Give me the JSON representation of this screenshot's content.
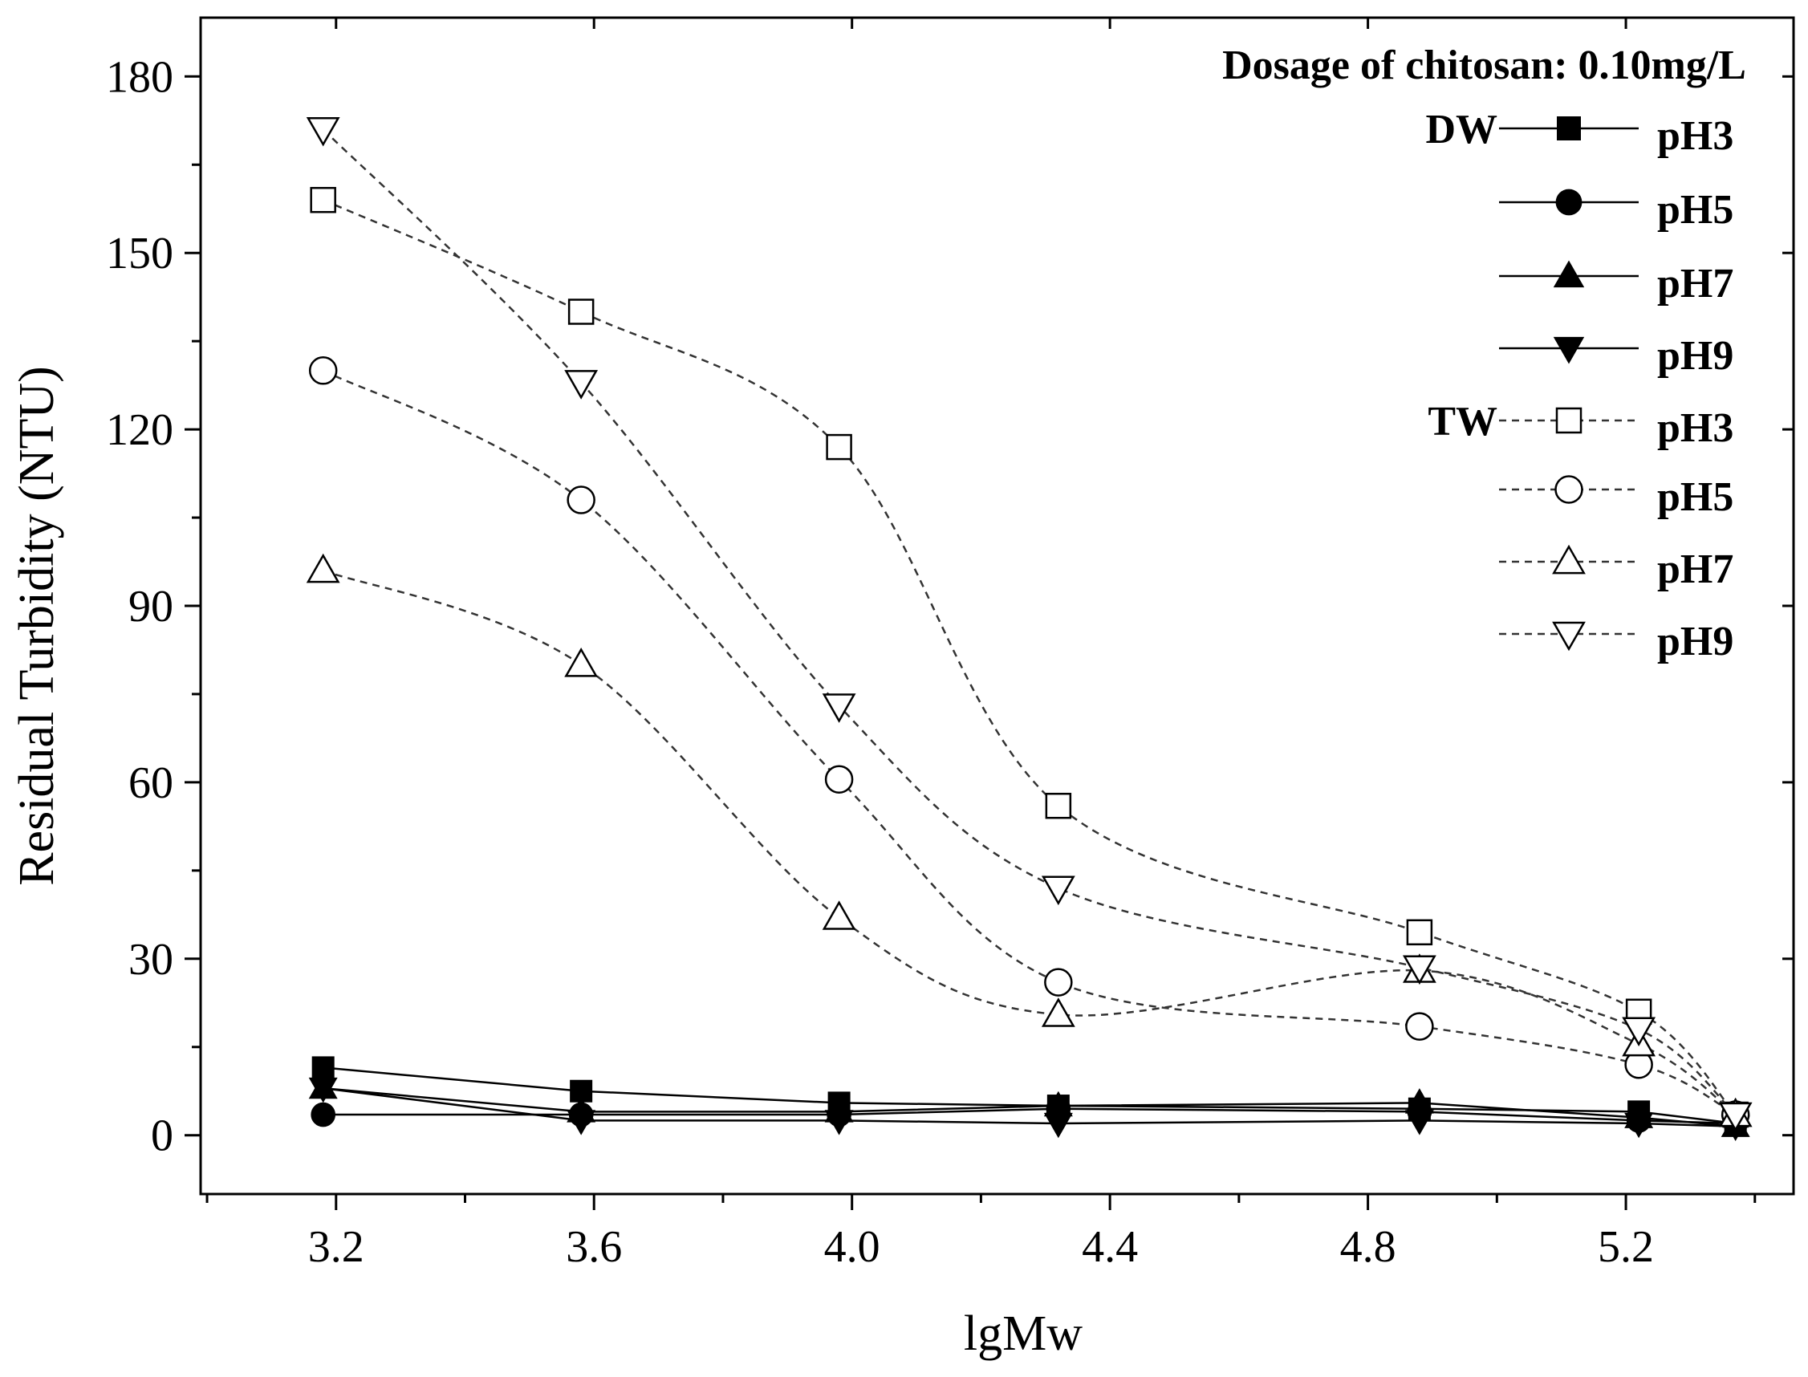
{
  "chart_data": {
    "type": "line",
    "title": "",
    "annotation": "Dosage of chitosan: 0.10mg/L",
    "xlabel": "lgMw",
    "ylabel": "Residual Turbidity (NTU)",
    "xlim": [
      2.99,
      5.46
    ],
    "ylim": [
      -10,
      190
    ],
    "xticks": [
      3.2,
      3.6,
      4.0,
      4.4,
      4.8,
      5.2
    ],
    "xtick_labels": [
      "3.2",
      "3.6",
      "4.0",
      "4.4",
      "4.8",
      "5.2"
    ],
    "yticks": [
      0,
      30,
      60,
      90,
      120,
      150,
      180
    ],
    "ytick_labels": [
      "0",
      "30",
      "60",
      "90",
      "120",
      "150",
      "180"
    ],
    "x": [
      3.18,
      3.58,
      3.98,
      4.32,
      4.88,
      5.22,
      5.37
    ],
    "legend_groups": [
      "DW",
      "TW"
    ],
    "series": [
      {
        "name": "pH3",
        "group": "DW",
        "marker": "square",
        "filled": true,
        "line": "solid",
        "values": [
          11.5,
          7.5,
          5.5,
          5.0,
          4.5,
          4.0,
          2.0
        ]
      },
      {
        "name": "pH5",
        "group": "DW",
        "marker": "circle",
        "filled": true,
        "line": "solid",
        "values": [
          3.5,
          3.5,
          3.5,
          4.5,
          4.0,
          2.5,
          2.0
        ]
      },
      {
        "name": "pH7",
        "group": "DW",
        "marker": "triangle-up",
        "filled": true,
        "line": "solid",
        "values": [
          8.0,
          4.0,
          4.0,
          5.0,
          5.5,
          3.0,
          1.5
        ]
      },
      {
        "name": "pH9",
        "group": "DW",
        "marker": "triangle-down",
        "filled": true,
        "line": "solid",
        "values": [
          8.0,
          2.5,
          2.5,
          2.0,
          2.5,
          2.0,
          1.5
        ]
      },
      {
        "name": "pH3",
        "group": "TW",
        "marker": "square",
        "filled": false,
        "line": "dashed",
        "values": [
          159,
          140,
          117,
          56,
          34.5,
          21,
          3.5
        ]
      },
      {
        "name": "pH5",
        "group": "TW",
        "marker": "circle",
        "filled": false,
        "line": "dashed",
        "values": [
          130,
          108,
          60.5,
          26,
          18.5,
          12,
          3.5
        ]
      },
      {
        "name": "pH7",
        "group": "TW",
        "marker": "triangle-up",
        "filled": false,
        "line": "dashed",
        "values": [
          96,
          80,
          37,
          20.5,
          28,
          15.5,
          3.5
        ]
      },
      {
        "name": "pH9",
        "group": "TW",
        "marker": "triangle-down",
        "filled": false,
        "line": "dashed",
        "values": [
          171,
          128,
          73,
          42,
          28.5,
          18,
          3.5
        ]
      }
    ]
  }
}
